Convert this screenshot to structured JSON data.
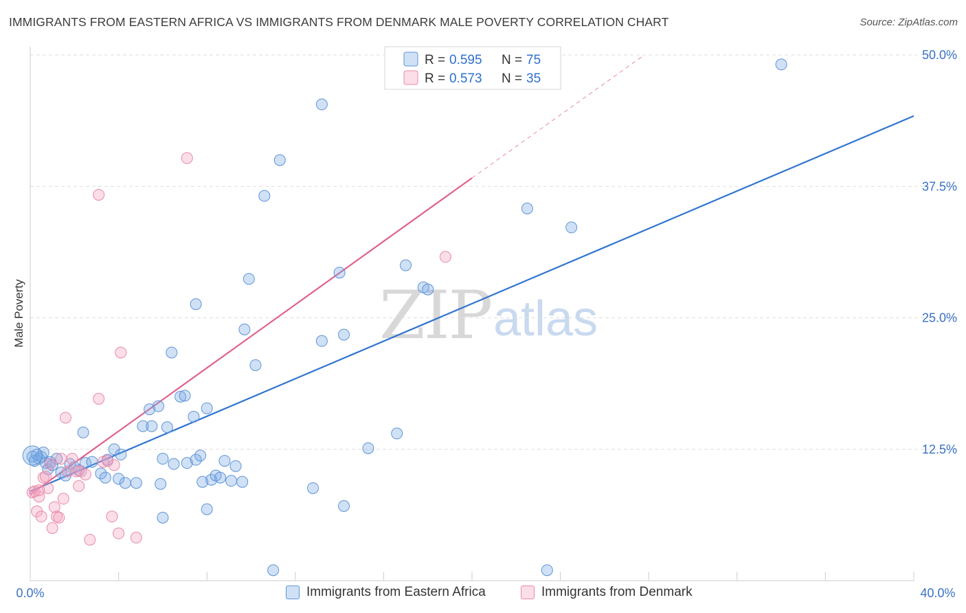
{
  "title": "IMMIGRANTS FROM EASTERN AFRICA VS IMMIGRANTS FROM DENMARK MALE POVERTY CORRELATION CHART",
  "source": "Source: ZipAtlas.com",
  "watermark": {
    "zip": "ZIP",
    "atlas": "atlas"
  },
  "colors": {
    "blue_fill": "rgba(120,170,230,0.35)",
    "blue_stroke": "#5e93d6",
    "blue_line": "#2f74d0",
    "pink_fill": "rgba(244,160,190,0.35)",
    "pink_stroke": "#e88aa8",
    "pink_line": "#e0608e",
    "grid": "#dddddd",
    "axis_label": "#3a72c4"
  },
  "legend": {
    "rows": [
      {
        "r_label": "R = ",
        "r_value": "0.595",
        "n_label": "N = ",
        "n_value": "75"
      },
      {
        "r_label": "R = ",
        "r_value": "0.573",
        "n_label": "N = ",
        "n_value": "35"
      }
    ]
  },
  "bottom_legend": [
    {
      "label": "Immigrants from Eastern Africa"
    },
    {
      "label": "Immigrants from Denmark"
    }
  ],
  "chart_data": {
    "type": "scatter",
    "title": "IMMIGRANTS FROM EASTERN AFRICA VS IMMIGRANTS FROM DENMARK MALE POVERTY CORRELATION CHART",
    "xlabel": "",
    "ylabel": "Male Poverty",
    "xlim": [
      0,
      40
    ],
    "ylim": [
      0,
      50
    ],
    "x_tick_labels": [
      "0.0%",
      "40.0%"
    ],
    "y_ticks": [
      12.5,
      25.0,
      37.5,
      50.0
    ],
    "y_tick_labels": [
      "12.5%",
      "25.0%",
      "37.5%",
      "50.0%"
    ],
    "grid": true,
    "legend_position": "top-center",
    "series": [
      {
        "name": "Immigrants from Eastern Africa",
        "R": 0.595,
        "N": 75,
        "trend": {
          "x0": 0.0,
          "y0": 8.5,
          "x1": 40.0,
          "y1": 44.2
        },
        "points": [
          [
            0.1,
            11.8
          ],
          [
            0.2,
            11.4
          ],
          [
            0.3,
            12.0
          ],
          [
            0.4,
            11.6
          ],
          [
            0.5,
            11.8
          ],
          [
            0.6,
            12.2
          ],
          [
            0.7,
            11.2
          ],
          [
            0.8,
            10.6
          ],
          [
            0.9,
            11.3
          ],
          [
            1.0,
            11.0
          ],
          [
            1.2,
            11.6
          ],
          [
            1.4,
            10.3
          ],
          [
            1.6,
            10.0
          ],
          [
            1.8,
            11.1
          ],
          [
            2.0,
            10.8
          ],
          [
            2.2,
            10.5
          ],
          [
            2.5,
            11.2
          ],
          [
            2.8,
            11.3
          ],
          [
            3.2,
            10.2
          ],
          [
            3.5,
            11.5
          ],
          [
            2.4,
            14.1
          ],
          [
            3.8,
            12.5
          ],
          [
            4.1,
            12.0
          ],
          [
            3.4,
            9.8
          ],
          [
            4.0,
            9.7
          ],
          [
            4.3,
            9.3
          ],
          [
            4.8,
            9.3
          ],
          [
            5.1,
            14.7
          ],
          [
            5.4,
            16.3
          ],
          [
            5.5,
            14.7
          ],
          [
            5.8,
            16.6
          ],
          [
            5.9,
            9.2
          ],
          [
            6.0,
            11.6
          ],
          [
            6.2,
            14.6
          ],
          [
            6.0,
            6.0
          ],
          [
            6.4,
            21.7
          ],
          [
            6.5,
            11.1
          ],
          [
            6.8,
            17.5
          ],
          [
            7.0,
            17.6
          ],
          [
            7.1,
            11.2
          ],
          [
            7.4,
            15.6
          ],
          [
            7.5,
            11.5
          ],
          [
            7.7,
            11.9
          ],
          [
            7.5,
            26.3
          ],
          [
            7.8,
            9.4
          ],
          [
            8.0,
            16.4
          ],
          [
            8.0,
            6.8
          ],
          [
            8.2,
            9.6
          ],
          [
            8.4,
            10.0
          ],
          [
            8.6,
            9.8
          ],
          [
            8.8,
            11.4
          ],
          [
            9.1,
            9.5
          ],
          [
            9.3,
            10.9
          ],
          [
            9.6,
            9.4
          ],
          [
            9.7,
            23.9
          ],
          [
            9.9,
            28.7
          ],
          [
            10.2,
            20.5
          ],
          [
            10.6,
            36.6
          ],
          [
            11.3,
            40.0
          ],
          [
            11.0,
            1.0
          ],
          [
            12.8,
            8.8
          ],
          [
            13.2,
            22.8
          ],
          [
            13.2,
            45.3
          ],
          [
            14.0,
            29.3
          ],
          [
            14.2,
            23.4
          ],
          [
            14.2,
            7.1
          ],
          [
            15.3,
            12.6
          ],
          [
            16.6,
            14.0
          ],
          [
            17.0,
            30.0
          ],
          [
            17.8,
            27.9
          ],
          [
            18.0,
            27.7
          ],
          [
            22.5,
            35.4
          ],
          [
            23.4,
            1.0
          ],
          [
            24.5,
            33.6
          ],
          [
            34.0,
            49.1
          ]
        ]
      },
      {
        "name": "Immigrants from Denmark",
        "R": 0.573,
        "N": 35,
        "trend": {
          "x0": 0.0,
          "y0": 8.2,
          "x1": 20.0,
          "y1": 38.3,
          "ext_x1": 27.8,
          "ext_y1": 50.0
        },
        "points": [
          [
            0.1,
            8.4
          ],
          [
            0.2,
            8.5
          ],
          [
            0.3,
            6.6
          ],
          [
            0.4,
            8.0
          ],
          [
            0.5,
            6.1
          ],
          [
            0.6,
            9.8
          ],
          [
            0.7,
            9.9
          ],
          [
            0.8,
            8.8
          ],
          [
            0.9,
            11.1
          ],
          [
            1.0,
            5.0
          ],
          [
            1.1,
            7.0
          ],
          [
            1.2,
            6.1
          ],
          [
            1.3,
            6.0
          ],
          [
            1.4,
            11.6
          ],
          [
            1.5,
            7.8
          ],
          [
            1.6,
            15.5
          ],
          [
            1.7,
            10.4
          ],
          [
            1.9,
            11.6
          ],
          [
            2.1,
            10.4
          ],
          [
            2.2,
            9.0
          ],
          [
            2.3,
            10.4
          ],
          [
            2.5,
            10.1
          ],
          [
            2.7,
            3.9
          ],
          [
            3.1,
            17.3
          ],
          [
            3.1,
            36.7
          ],
          [
            3.3,
            11.3
          ],
          [
            3.5,
            11.4
          ],
          [
            3.7,
            6.1
          ],
          [
            3.8,
            11.0
          ],
          [
            4.0,
            4.5
          ],
          [
            4.1,
            21.7
          ],
          [
            4.8,
            4.1
          ],
          [
            7.1,
            40.2
          ],
          [
            18.8,
            30.8
          ],
          [
            0.4,
            8.6
          ]
        ]
      }
    ]
  }
}
